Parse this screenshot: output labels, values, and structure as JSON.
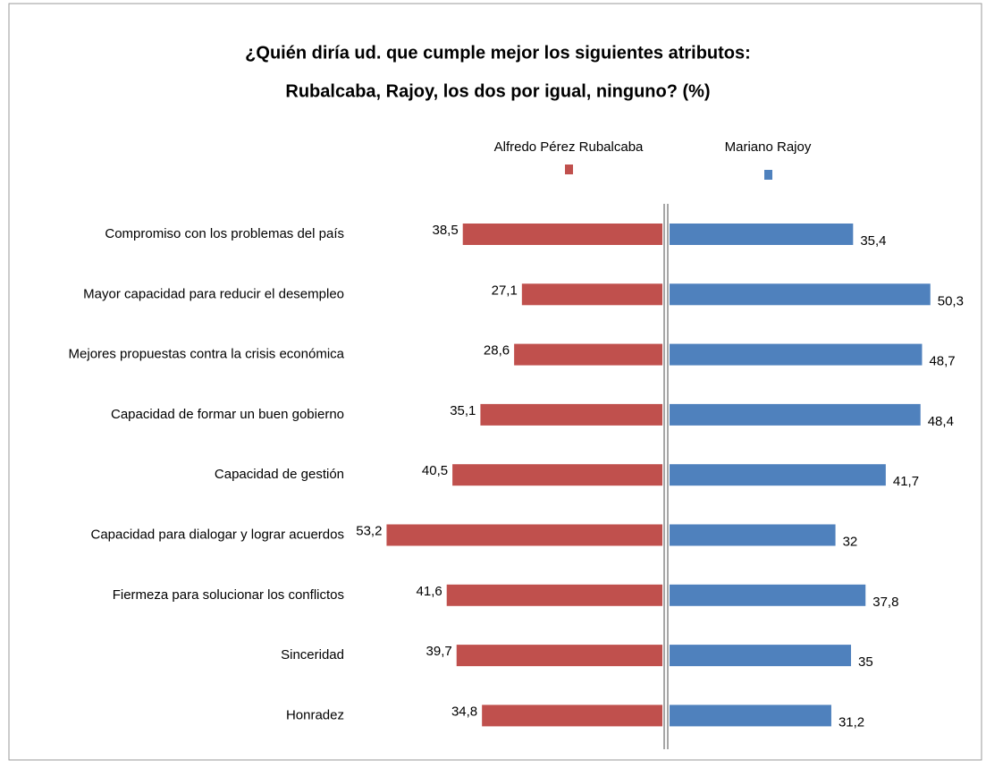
{
  "chart_data": {
    "type": "diverging_bar",
    "title": [
      "¿Quién diría ud. que cumple mejor los siguientes atributos:",
      "Rubalcaba, Rajoy, los dos por igual, ninguno? (%)"
    ],
    "categories": [
      "Compromiso con los problemas del país",
      "Mayor capacidad para reducir el desempleo",
      "Mejores propuestas contra la crisis económica",
      "Capacidad de formar un buen gobierno",
      "Capacidad de gestión",
      "Capacidad para dialogar y lograr acuerdos",
      "Fiermeza para solucionar los conflictos",
      "Sinceridad",
      "Honradez"
    ],
    "series": [
      {
        "name": "Alfredo Pérez Rubalcaba",
        "color": "#c0504d",
        "side": "left",
        "values": [
          38.5,
          27.1,
          28.6,
          35.1,
          40.5,
          53.2,
          41.6,
          39.7,
          34.8
        ],
        "value_labels": [
          "38,5",
          "27,1",
          "28,6",
          "35,1",
          "40,5",
          "53,2",
          "41,6",
          "39,7",
          "34,8"
        ]
      },
      {
        "name": "Mariano Rajoy",
        "color": "#4f81bd",
        "side": "right",
        "values": [
          35.4,
          50.3,
          48.7,
          48.4,
          41.7,
          32,
          37.8,
          35,
          31.2
        ],
        "value_labels": [
          "35,4",
          "50,3",
          "48,7",
          "48,4",
          "41,7",
          "32",
          "37,8",
          "35",
          "31,2"
        ]
      }
    ]
  }
}
